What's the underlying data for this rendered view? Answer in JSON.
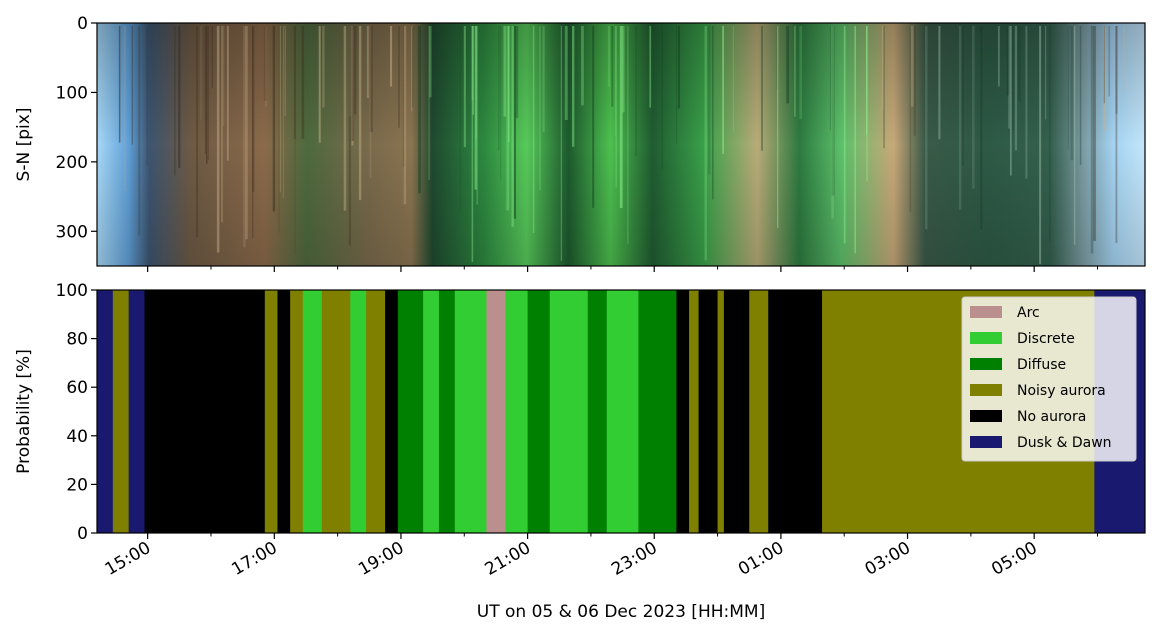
{
  "colors": {
    "arc": "#bc8f8f",
    "discrete": "#32cd32",
    "diffuse": "#008000",
    "noisy": "#808000",
    "noaurora": "#000000",
    "duskdawn": "#191970"
  },
  "chart_data": [
    {
      "type": "heatmap",
      "ylabel": "S-N [pix]",
      "ylim": [
        350,
        0
      ],
      "yticks": [
        "0",
        "100",
        "200",
        "300"
      ],
      "ytick_values": [
        0,
        100,
        200,
        300
      ],
      "description_colors": [
        "sky-blue",
        "brown",
        "green",
        "tan",
        "dark-green",
        "sky-blue"
      ]
    },
    {
      "type": "area",
      "ylabel": "Probability [%]",
      "xlabel": "UT on 05 & 06 Dec 2023 [HH:MM]",
      "ylim": [
        0,
        100
      ],
      "yticks": [
        "0",
        "20",
        "40",
        "60",
        "80",
        "100"
      ],
      "ytick_values": [
        0,
        20,
        40,
        60,
        80,
        100
      ],
      "xlim_hours": [
        14.2,
        30.75
      ],
      "xticks": [
        "15:00",
        "17:00",
        "19:00",
        "21:00",
        "23:00",
        "01:00",
        "03:00",
        "05:00"
      ],
      "xtick_hours": [
        15,
        17,
        19,
        21,
        23,
        25,
        27,
        29
      ],
      "minor_tick_hours": [
        16,
        18,
        20,
        22,
        24,
        26,
        28,
        30
      ],
      "legend_position": "top-right",
      "categories": [
        "Arc",
        "Discrete",
        "Diffuse",
        "Noisy aurora",
        "No aurora",
        "Dusk & Dawn"
      ],
      "segments": [
        {
          "start": 14.2,
          "end": 14.45,
          "class": "Dusk & Dawn"
        },
        {
          "start": 14.45,
          "end": 14.7,
          "class": "Noisy aurora"
        },
        {
          "start": 14.7,
          "end": 14.95,
          "class": "Dusk & Dawn"
        },
        {
          "start": 14.95,
          "end": 16.85,
          "class": "No aurora"
        },
        {
          "start": 16.85,
          "end": 17.05,
          "class": "Noisy aurora"
        },
        {
          "start": 17.05,
          "end": 17.25,
          "class": "No aurora"
        },
        {
          "start": 17.25,
          "end": 17.45,
          "class": "Noisy aurora"
        },
        {
          "start": 17.45,
          "end": 17.75,
          "class": "Discrete"
        },
        {
          "start": 17.75,
          "end": 18.2,
          "class": "Noisy aurora"
        },
        {
          "start": 18.2,
          "end": 18.45,
          "class": "Discrete"
        },
        {
          "start": 18.45,
          "end": 18.75,
          "class": "Noisy aurora"
        },
        {
          "start": 18.75,
          "end": 18.95,
          "class": "No aurora"
        },
        {
          "start": 18.95,
          "end": 19.35,
          "class": "Diffuse"
        },
        {
          "start": 19.35,
          "end": 19.6,
          "class": "Discrete"
        },
        {
          "start": 19.6,
          "end": 19.85,
          "class": "Diffuse"
        },
        {
          "start": 19.85,
          "end": 20.35,
          "class": "Discrete"
        },
        {
          "start": 20.35,
          "end": 20.65,
          "class": "Arc"
        },
        {
          "start": 20.65,
          "end": 21.0,
          "class": "Discrete"
        },
        {
          "start": 21.0,
          "end": 21.35,
          "class": "Diffuse"
        },
        {
          "start": 21.35,
          "end": 21.95,
          "class": "Discrete"
        },
        {
          "start": 21.95,
          "end": 22.25,
          "class": "Diffuse"
        },
        {
          "start": 22.25,
          "end": 22.75,
          "class": "Discrete"
        },
        {
          "start": 22.75,
          "end": 23.35,
          "class": "Diffuse"
        },
        {
          "start": 23.35,
          "end": 23.55,
          "class": "No aurora"
        },
        {
          "start": 23.55,
          "end": 23.7,
          "class": "Noisy aurora"
        },
        {
          "start": 23.7,
          "end": 24.0,
          "class": "No aurora"
        },
        {
          "start": 24.0,
          "end": 24.1,
          "class": "Noisy aurora"
        },
        {
          "start": 24.1,
          "end": 24.5,
          "class": "No aurora"
        },
        {
          "start": 24.5,
          "end": 24.8,
          "class": "Noisy aurora"
        },
        {
          "start": 24.8,
          "end": 25.65,
          "class": "No aurora"
        },
        {
          "start": 25.65,
          "end": 29.95,
          "class": "Noisy aurora"
        },
        {
          "start": 29.95,
          "end": 30.75,
          "class": "Dusk & Dawn"
        }
      ]
    }
  ]
}
